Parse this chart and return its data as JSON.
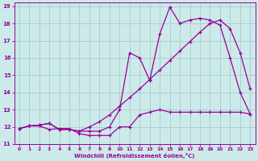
{
  "xlabel": "Windchill (Refroidissement éolien,°C)",
  "ylabel": "",
  "background_color": "#cceaea",
  "grid_color": "#aacccc",
  "line_color": "#990099",
  "xlim": [
    -0.5,
    23.5
  ],
  "ylim": [
    11,
    19.2
  ],
  "yticks": [
    11,
    12,
    13,
    14,
    15,
    16,
    17,
    18,
    19
  ],
  "xticks": [
    0,
    1,
    2,
    3,
    4,
    5,
    6,
    7,
    8,
    9,
    10,
    11,
    12,
    13,
    14,
    15,
    16,
    17,
    18,
    19,
    20,
    21,
    22,
    23
  ],
  "line1_x": [
    0,
    1,
    2,
    3,
    4,
    5,
    6,
    7,
    8,
    9,
    10,
    11,
    12,
    13,
    14,
    15,
    16,
    17,
    18,
    19,
    20,
    21,
    22,
    23
  ],
  "line1_y": [
    11.9,
    12.05,
    12.05,
    11.85,
    11.9,
    11.9,
    11.6,
    11.5,
    11.5,
    11.5,
    12.0,
    12.0,
    12.7,
    12.85,
    13.0,
    12.85,
    12.85,
    12.85,
    12.85,
    12.85,
    12.85,
    12.85,
    12.85,
    12.75
  ],
  "line2_x": [
    0,
    1,
    2,
    3,
    4,
    5,
    6,
    7,
    8,
    9,
    10,
    11,
    12,
    13,
    14,
    15,
    16,
    17,
    18,
    19,
    20,
    21,
    22,
    23
  ],
  "line2_y": [
    11.9,
    12.05,
    12.1,
    12.2,
    11.85,
    11.85,
    11.75,
    11.75,
    11.75,
    12.0,
    13.0,
    16.3,
    16.0,
    14.7,
    17.4,
    18.95,
    18.0,
    18.2,
    18.3,
    18.2,
    17.9,
    16.0,
    14.0,
    12.75
  ],
  "line3_x": [
    0,
    1,
    2,
    3,
    4,
    5,
    6,
    7,
    8,
    9,
    10,
    11,
    12,
    13,
    14,
    15,
    16,
    17,
    18,
    19,
    20,
    21,
    22,
    23
  ],
  "line3_y": [
    11.9,
    12.05,
    12.1,
    12.2,
    11.85,
    11.85,
    11.75,
    12.0,
    12.3,
    12.7,
    13.2,
    13.7,
    14.2,
    14.75,
    15.3,
    15.85,
    16.4,
    16.95,
    17.5,
    18.0,
    18.2,
    17.7,
    16.3,
    14.2
  ]
}
